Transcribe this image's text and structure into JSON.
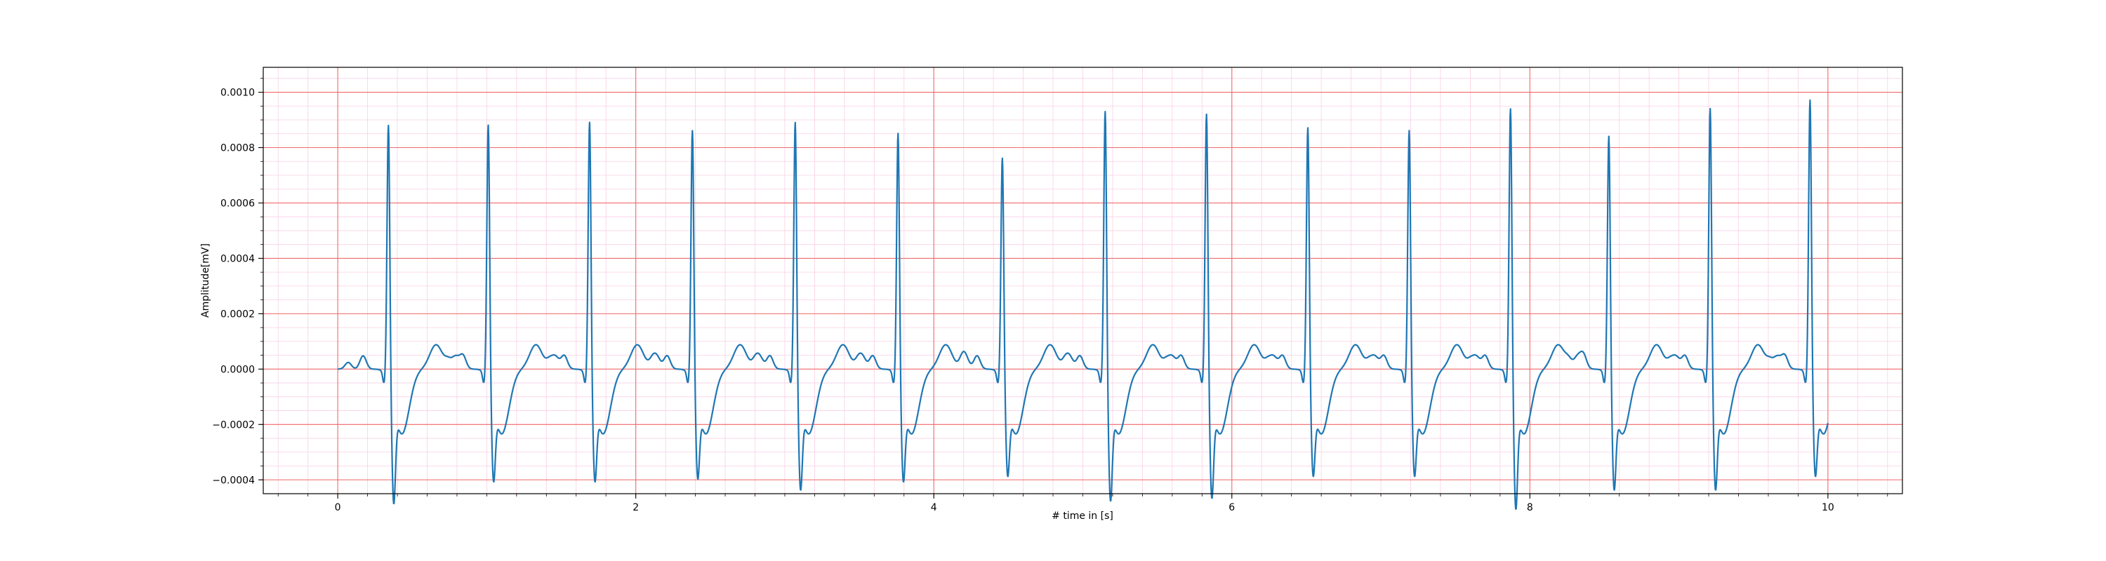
{
  "chart_data": {
    "type": "line",
    "title": "",
    "xlabel": "# time in [s]",
    "ylabel": "Amplitude[mV]",
    "xlim": [
      -0.5,
      10.5
    ],
    "ylim": [
      -0.00045,
      0.00109
    ],
    "xticks": [
      0,
      2,
      4,
      6,
      8,
      10
    ],
    "xtick_labels": [
      "0",
      "2",
      "4",
      "6",
      "8",
      "10"
    ],
    "yticks": [
      -0.0004,
      -0.0002,
      0.0,
      0.0002,
      0.0004,
      0.0006,
      0.0008,
      0.001
    ],
    "ytick_labels": [
      "−0.0004",
      "−0.0002",
      "0.0000",
      "0.0002",
      "0.0004",
      "0.0006",
      "0.0008",
      "0.0010"
    ],
    "grid": {
      "major": true,
      "minor": true,
      "major_color": "#f26b6b",
      "minor_color": "#f9cfe6"
    },
    "legend": "none",
    "series": [
      {
        "color": "#1f77b4",
        "duration_s": 10.0,
        "beats": [
          {
            "t": 0.34,
            "peak": 0.00093,
            "trough": -0.00036
          },
          {
            "t": 1.01,
            "peak": 0.00093,
            "trough": -0.00028
          },
          {
            "t": 1.69,
            "peak": 0.00094,
            "trough": -0.00028
          },
          {
            "t": 2.38,
            "peak": 0.00091,
            "trough": -0.00027
          },
          {
            "t": 3.07,
            "peak": 0.00094,
            "trough": -0.00031
          },
          {
            "t": 3.76,
            "peak": 0.0009,
            "trough": -0.00028
          },
          {
            "t": 4.46,
            "peak": 0.00081,
            "trough": -0.00026
          },
          {
            "t": 5.15,
            "peak": 0.00098,
            "trough": -0.00035
          },
          {
            "t": 5.83,
            "peak": 0.00097,
            "trough": -0.00034
          },
          {
            "t": 6.51,
            "peak": 0.00092,
            "trough": -0.00026
          },
          {
            "t": 7.19,
            "peak": 0.00091,
            "trough": -0.00026
          },
          {
            "t": 7.87,
            "peak": 0.00099,
            "trough": -0.00038
          },
          {
            "t": 8.53,
            "peak": 0.00089,
            "trough": -0.00031
          },
          {
            "t": 9.21,
            "peak": 0.00099,
            "trough": -0.00031
          },
          {
            "t": 9.88,
            "peak": 0.00102,
            "trough": -0.00026
          }
        ],
        "t_wave_amplitude": 8e-05,
        "p_wave_amplitude": 4e-05,
        "pre_q_dip": -4e-05,
        "recovery_start": -0.00026
      }
    ]
  }
}
